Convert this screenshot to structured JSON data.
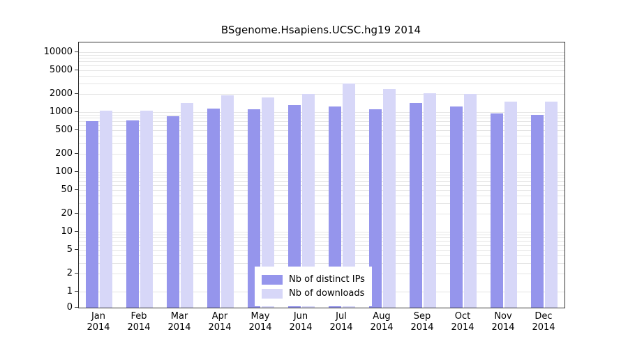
{
  "chart_data": {
    "type": "bar",
    "title": "BSgenome.Hsapiens.UCSC.hg19 2014",
    "xlabel": "",
    "ylabel": "",
    "scale": "log",
    "ylim": [
      0,
      10000
    ],
    "yticks": [
      0,
      1,
      2,
      5,
      10,
      20,
      50,
      100,
      200,
      500,
      1000,
      2000,
      5000,
      10000
    ],
    "grid": "on",
    "legend_position": "bottom-center",
    "months": [
      "Jan",
      "Feb",
      "Mar",
      "Apr",
      "May",
      "Jun",
      "Jul",
      "Aug",
      "Sep",
      "Oct",
      "Nov",
      "Dec"
    ],
    "year": "2014",
    "series": [
      {
        "name": "Nb of distinct IPs",
        "color": "#9595ec",
        "values": [
          700,
          720,
          850,
          1150,
          1100,
          1300,
          1250,
          1100,
          1400,
          1250,
          950,
          900
        ]
      },
      {
        "name": "Nb of downloads",
        "color": "#d7d7f8",
        "values": [
          1050,
          1050,
          1400,
          1900,
          1750,
          2000,
          3000,
          2400,
          2050,
          2000,
          1500,
          1500
        ]
      }
    ]
  }
}
